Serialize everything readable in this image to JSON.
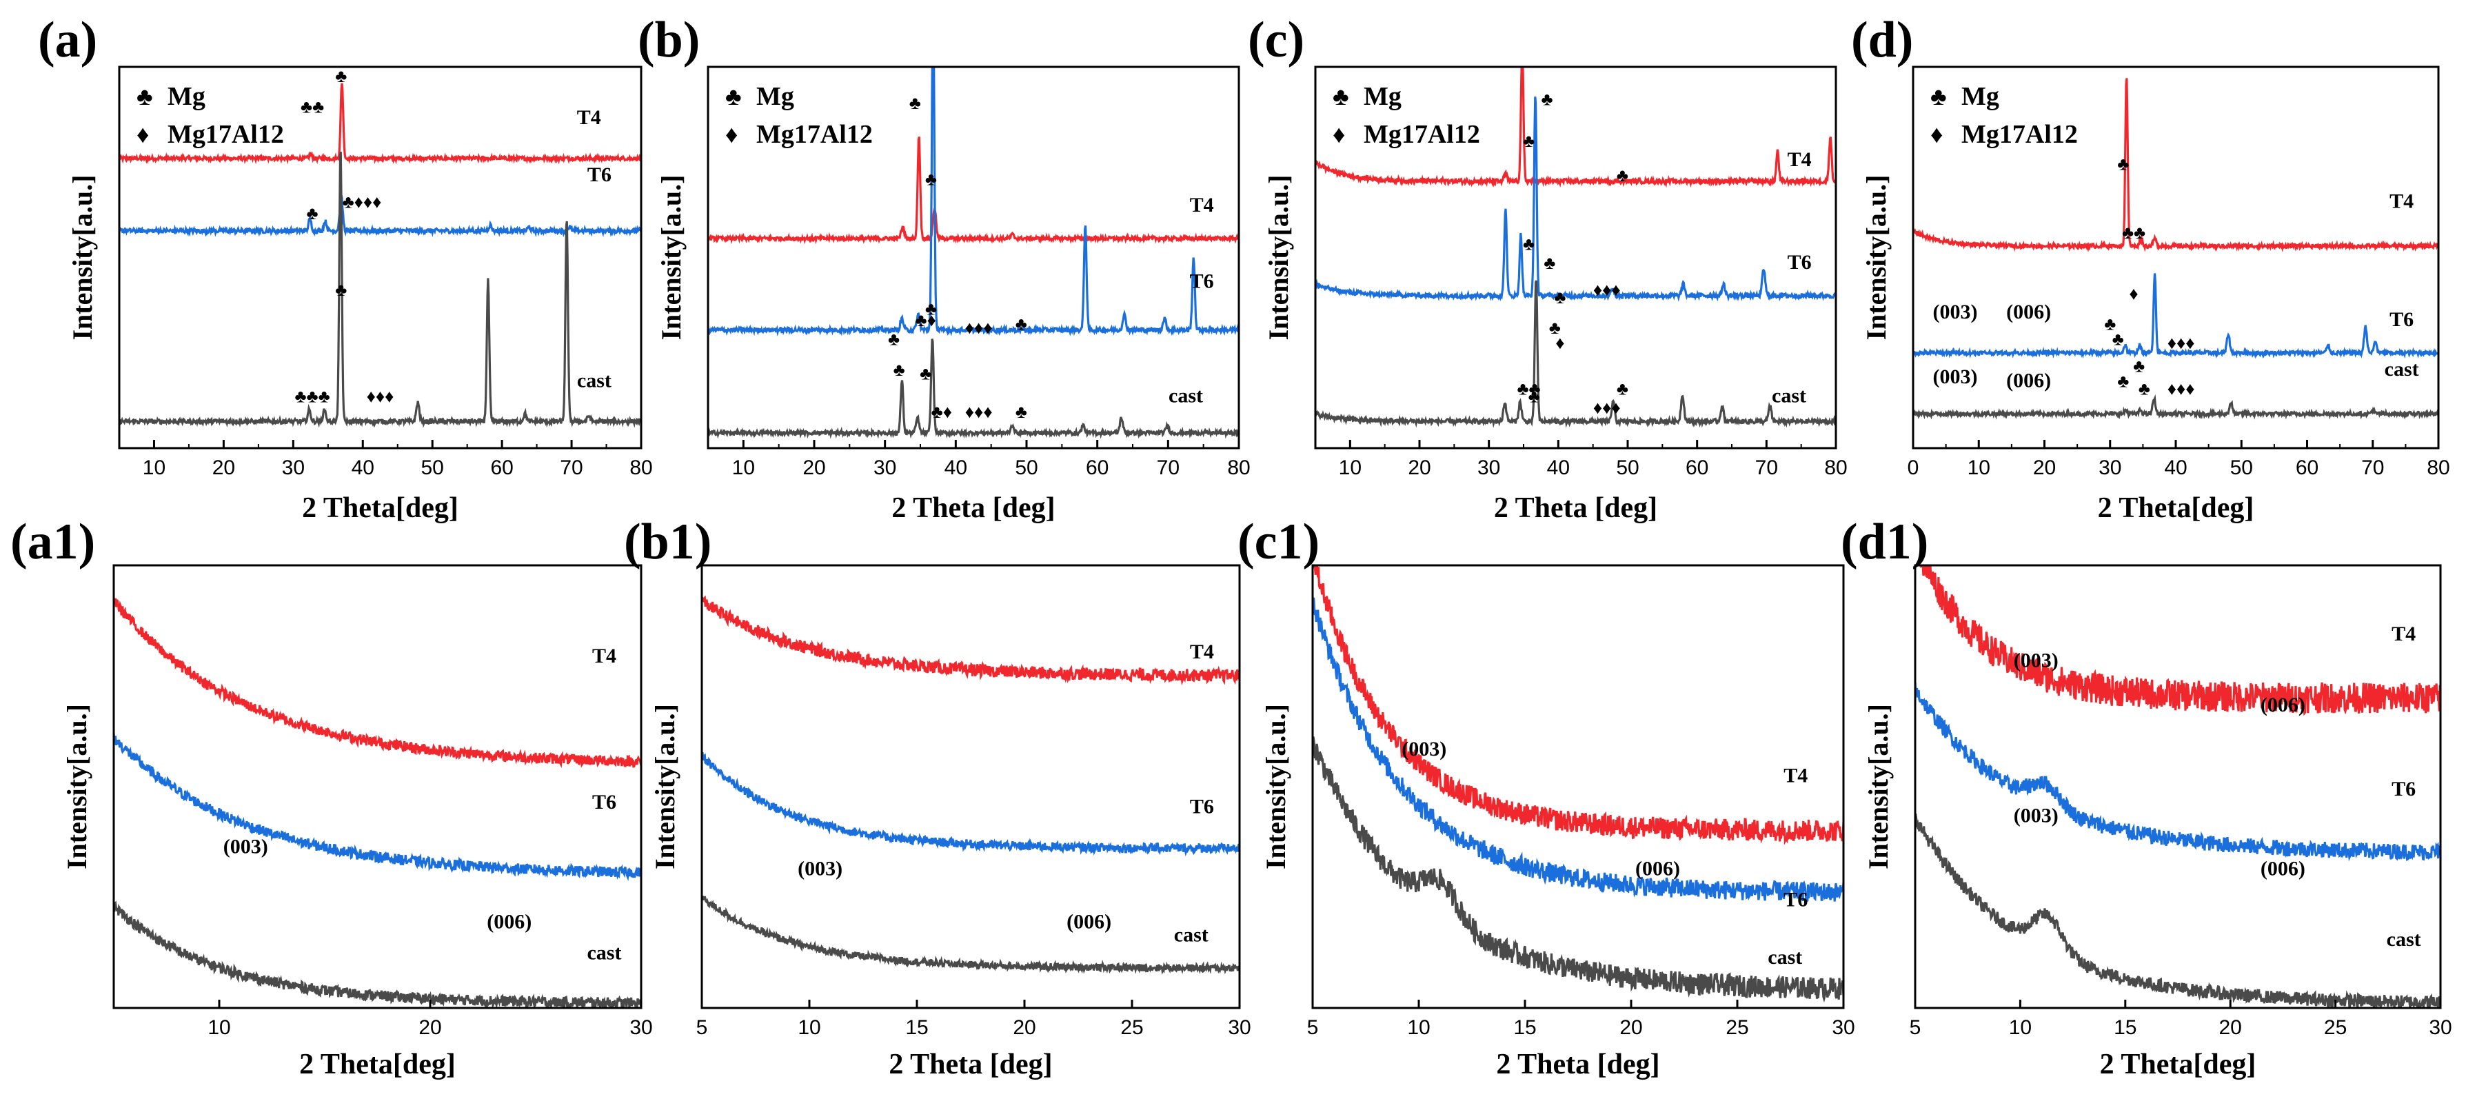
{
  "figure": {
    "description_labels": [
      "(a)",
      "(b)",
      "(c)",
      "(d)",
      "(a1)",
      "(b1)",
      "(c1)",
      "(d1)"
    ]
  },
  "legend_symbols": {
    "mg": "♣",
    "mg17al12": "♦"
  },
  "colors": {
    "T4": "#f0282d",
    "T6": "#1a6fdc",
    "cast": "#4a4a4a",
    "axis": "#000000"
  },
  "chart_data": [
    {
      "panel": "(a)",
      "type": "line",
      "xlabel": "2 Theta[deg]",
      "ylabel": "Intensity[a.u.]",
      "xlim": [
        5,
        80
      ],
      "xticks": [
        10,
        20,
        30,
        40,
        50,
        60,
        70,
        80
      ],
      "legend": [
        {
          "symbol": "♣",
          "label": "Mg"
        },
        {
          "symbol": "♦",
          "label": "Mg17Al12"
        }
      ],
      "series": [
        {
          "name": "T4",
          "color": "#f0282d",
          "baseline": 0.76,
          "noise": 0.005,
          "peaks": [
            [
              37.0,
              0.2,
              0.25
            ],
            [
              32.5,
              0.01,
              0.3
            ]
          ]
        },
        {
          "name": "T6",
          "color": "#1a6fdc",
          "baseline": 0.57,
          "noise": 0.006,
          "peaks": [
            [
              32.4,
              0.03,
              0.3
            ],
            [
              34.6,
              0.025,
              0.3
            ],
            [
              36.9,
              0.09,
              0.3
            ],
            [
              58.3,
              0.015,
              0.3
            ],
            [
              63.9,
              0.01,
              0.3
            ],
            [
              69.7,
              0.01,
              0.3
            ]
          ]
        },
        {
          "name": "cast",
          "color": "#4a4a4a",
          "baseline": 0.07,
          "noise": 0.006,
          "peaks": [
            [
              32.3,
              0.03,
              0.3
            ],
            [
              34.5,
              0.03,
              0.3
            ],
            [
              36.8,
              0.72,
              0.25
            ],
            [
              47.9,
              0.05,
              0.3
            ],
            [
              58.0,
              0.37,
              0.25
            ],
            [
              63.3,
              0.02,
              0.3
            ],
            [
              69.3,
              0.53,
              0.25
            ],
            [
              72.5,
              0.015,
              0.3
            ]
          ]
        }
      ],
      "curve_labels": [
        "T4",
        "T6",
        "cast"
      ],
      "annotations": [
        "♣♣",
        "♣",
        "♣",
        "♣♦♦♦",
        "♣",
        "♣♣♣",
        "♦♦♦"
      ]
    },
    {
      "panel": "(b)",
      "type": "line",
      "xlabel": "2 Theta [deg]",
      "ylabel": "Intensity[a.u.]",
      "xlim": [
        5,
        80
      ],
      "xticks": [
        10,
        20,
        30,
        40,
        50,
        60,
        70,
        80
      ],
      "legend": [
        {
          "symbol": "♣",
          "label": "Mg"
        },
        {
          "symbol": "♦",
          "label": "Mg17Al12"
        }
      ],
      "series": [
        {
          "name": "T4",
          "color": "#f0282d",
          "baseline": 0.55,
          "noise": 0.005,
          "peaks": [
            [
              32.5,
              0.03,
              0.3
            ],
            [
              34.8,
              0.27,
              0.25
            ],
            [
              37.0,
              0.08,
              0.3
            ],
            [
              48.0,
              0.01,
              0.3
            ]
          ]
        },
        {
          "name": "T6",
          "color": "#1a6fdc",
          "baseline": 0.31,
          "noise": 0.006,
          "peaks": [
            [
              32.4,
              0.03,
              0.3
            ],
            [
              34.7,
              0.04,
              0.3
            ],
            [
              36.8,
              0.85,
              0.25
            ],
            [
              58.3,
              0.28,
              0.25
            ],
            [
              63.8,
              0.04,
              0.3
            ],
            [
              69.5,
              0.03,
              0.3
            ],
            [
              73.6,
              0.19,
              0.25
            ]
          ]
        },
        {
          "name": "cast",
          "color": "#4a4a4a",
          "baseline": 0.04,
          "noise": 0.005,
          "peaks": [
            [
              32.4,
              0.14,
              0.25
            ],
            [
              34.6,
              0.04,
              0.3
            ],
            [
              36.7,
              0.25,
              0.25
            ],
            [
              48.0,
              0.02,
              0.3
            ],
            [
              58.0,
              0.02,
              0.3
            ],
            [
              63.4,
              0.04,
              0.3
            ],
            [
              69.9,
              0.02,
              0.3
            ]
          ]
        }
      ],
      "curve_labels": [
        "T4",
        "T6",
        "cast"
      ],
      "annotations": [
        "♣",
        "♣",
        "♣",
        "♣♦",
        "♣",
        "♦♦♦",
        "♣",
        "♣",
        "♣",
        "♣♦",
        "♦♦♦",
        "♣"
      ]
    },
    {
      "panel": "(c)",
      "type": "line",
      "xlabel": "2 Theta [deg]",
      "ylabel": "Intensity[a.u.]",
      "xlim": [
        5,
        80
      ],
      "xticks": [
        10,
        20,
        30,
        40,
        50,
        60,
        70,
        80
      ],
      "legend": [
        {
          "symbol": "♣",
          "label": "Mg"
        },
        {
          "symbol": "♦",
          "label": "Mg17Al12"
        }
      ],
      "series": [
        {
          "name": "T4",
          "color": "#f0282d",
          "baseline": 0.7,
          "noise": 0.006,
          "slope": 0.05,
          "peaks": [
            [
              32.4,
              0.02,
              0.3
            ],
            [
              34.8,
              0.34,
              0.25
            ],
            [
              71.6,
              0.08,
              0.25
            ],
            [
              79.2,
              0.12,
              0.25
            ]
          ]
        },
        {
          "name": "T6",
          "color": "#1a6fdc",
          "baseline": 0.4,
          "noise": 0.006,
          "slope": 0.03,
          "peaks": [
            [
              32.4,
              0.23,
              0.25
            ],
            [
              34.6,
              0.16,
              0.25
            ],
            [
              36.7,
              0.53,
              0.25
            ],
            [
              47.8,
              0.02,
              0.3
            ],
            [
              58.0,
              0.03,
              0.3
            ],
            [
              63.8,
              0.03,
              0.3
            ],
            [
              69.6,
              0.07,
              0.3
            ]
          ]
        },
        {
          "name": "cast",
          "color": "#4a4a4a",
          "baseline": 0.07,
          "noise": 0.006,
          "slope": 0.02,
          "peaks": [
            [
              32.3,
              0.05,
              0.3
            ],
            [
              34.5,
              0.05,
              0.3
            ],
            [
              36.8,
              0.38,
              0.25
            ],
            [
              47.9,
              0.05,
              0.3
            ],
            [
              57.9,
              0.07,
              0.3
            ],
            [
              63.6,
              0.04,
              0.3
            ],
            [
              70.5,
              0.04,
              0.3
            ]
          ]
        }
      ],
      "curve_labels": [
        "T4",
        "T6",
        "cast"
      ],
      "annotations": [
        "♣",
        "♣",
        "♣",
        "♣",
        "♣",
        "♣",
        "♦♦♦",
        "♣",
        "♣♣",
        "♣",
        "♦",
        "♣",
        "♦♦♦"
      ]
    },
    {
      "panel": "(d)",
      "type": "line",
      "xlabel": "2 Theta[deg]",
      "ylabel": "Intensity[a.u.]",
      "xlim": [
        0,
        80
      ],
      "xticks": [
        0,
        10,
        20,
        30,
        40,
        50,
        60,
        70,
        80
      ],
      "legend": [
        {
          "symbol": "♣",
          "label": "Mg"
        },
        {
          "symbol": "♦",
          "label": "Mg17Al12"
        }
      ],
      "series": [
        {
          "name": "T4",
          "color": "#f0282d",
          "baseline": 0.53,
          "noise": 0.005,
          "slope": 0.04,
          "peaks": [
            [
              32.5,
              0.45,
              0.25
            ],
            [
              34.7,
              0.02,
              0.3
            ],
            [
              36.8,
              0.02,
              0.3
            ]
          ]
        },
        {
          "name": "T6",
          "color": "#1a6fdc",
          "baseline": 0.25,
          "noise": 0.005,
          "peaks": [
            [
              32.3,
              0.02,
              0.3
            ],
            [
              34.5,
              0.02,
              0.3
            ],
            [
              36.8,
              0.21,
              0.25
            ],
            [
              48.0,
              0.05,
              0.3
            ],
            [
              63.2,
              0.02,
              0.3
            ],
            [
              68.9,
              0.07,
              0.3
            ],
            [
              70.4,
              0.03,
              0.3
            ]
          ]
        },
        {
          "name": "cast",
          "color": "#4a4a4a",
          "baseline": 0.09,
          "noise": 0.005,
          "peaks": [
            [
              32.4,
              0.01,
              0.3
            ],
            [
              34.6,
              0.01,
              0.3
            ],
            [
              36.7,
              0.04,
              0.3
            ],
            [
              48.4,
              0.03,
              0.3
            ],
            [
              70.0,
              0.01,
              0.3
            ]
          ]
        }
      ],
      "curve_labels": [
        "T4",
        "T6",
        "cast"
      ],
      "annotations": [
        "♣",
        "♣♣",
        "(003)",
        "(006)",
        "♣",
        "♣",
        "♦",
        "♦♦♦",
        "(003)",
        "(006)",
        "♣",
        "♣",
        "♣",
        "♦♦♦"
      ]
    },
    {
      "panel": "(a1)",
      "type": "line",
      "xlabel": "2 Theta[deg]",
      "ylabel": "Intensity[a.u.]",
      "xlim": [
        5,
        30
      ],
      "xticks": [
        10,
        20,
        30
      ],
      "tick_labels": [
        "10",
        "20",
        "30"
      ],
      "series": [
        {
          "name": "T4",
          "color": "#f0282d",
          "start": 0.92,
          "end": 0.55,
          "decay": 4.0,
          "noise": 0.012
        },
        {
          "name": "T6",
          "color": "#1a6fdc",
          "start": 0.61,
          "end": 0.3,
          "decay": 4.0,
          "noise": 0.012
        },
        {
          "name": "cast",
          "color": "#4a4a4a",
          "start": 0.23,
          "end": 0.01,
          "decay": 5.0,
          "noise": 0.012
        }
      ],
      "curve_labels": [
        "T4",
        "T6",
        "cast"
      ],
      "annotations": [
        "(003)",
        "(006)"
      ]
    },
    {
      "panel": "(b1)",
      "type": "line",
      "xlabel": "2 Theta [deg]",
      "ylabel": "Intensity[a.u.]",
      "xlim": [
        5,
        30
      ],
      "xticks": [
        5,
        10,
        15,
        20,
        25,
        30
      ],
      "tick_labels": [
        "5",
        "10",
        "15",
        "20",
        "25",
        "30"
      ],
      "series": [
        {
          "name": "T4",
          "color": "#f0282d",
          "start": 0.92,
          "end": 0.75,
          "decay": 5.0,
          "noise": 0.014
        },
        {
          "name": "T6",
          "color": "#1a6fdc",
          "start": 0.57,
          "end": 0.36,
          "decay": 6.0,
          "noise": 0.01
        },
        {
          "name": "cast",
          "color": "#4a4a4a",
          "start": 0.25,
          "end": 0.09,
          "decay": 6.0,
          "noise": 0.008
        }
      ],
      "curve_labels": [
        "T4",
        "T6",
        "cast"
      ],
      "annotations": [
        "(003)",
        "(006)"
      ]
    },
    {
      "panel": "(c1)",
      "type": "line",
      "xlabel": "2 Theta [deg]",
      "ylabel": "Intensity[a.u.]",
      "xlim": [
        5,
        30
      ],
      "xticks": [
        5,
        10,
        15,
        20,
        25,
        30
      ],
      "tick_labels": [
        "5",
        "10",
        "15",
        "20",
        "25",
        "30"
      ],
      "series": [
        {
          "name": "T4",
          "color": "#f0282d",
          "start": 1.02,
          "end": 0.4,
          "decay": 7.0,
          "noise": 0.025
        },
        {
          "name": "T6",
          "color": "#1a6fdc",
          "start": 0.92,
          "end": 0.26,
          "decay": 6.0,
          "noise": 0.022
        },
        {
          "name": "cast",
          "color": "#4a4a4a",
          "start": 0.6,
          "end": 0.04,
          "decay": 5.0,
          "noise": 0.025,
          "bump": [
            11.0,
            0.08,
            1.2
          ]
        }
      ],
      "curve_labels": [
        "T4",
        "T6",
        "cast"
      ],
      "annotations": [
        "(003)",
        "(006)"
      ]
    },
    {
      "panel": "(d1)",
      "type": "line",
      "xlabel": "2 Theta[deg]",
      "ylabel": "Intensity[a.u.]",
      "xlim": [
        5,
        30
      ],
      "xticks": [
        5,
        10,
        15,
        20,
        25,
        30
      ],
      "tick_labels": [
        "5",
        "10",
        "15",
        "20",
        "25",
        "30"
      ],
      "series": [
        {
          "name": "T4",
          "color": "#f0282d",
          "start": 1.05,
          "end": 0.7,
          "decay": 8.0,
          "noise": 0.035
        },
        {
          "name": "T6",
          "color": "#1a6fdc",
          "start": 0.72,
          "end": 0.35,
          "decay": 5.0,
          "noise": 0.018,
          "bump": [
            11.2,
            0.05,
            1.0
          ]
        },
        {
          "name": "cast",
          "color": "#4a4a4a",
          "start": 0.43,
          "end": 0.01,
          "decay": 5.0,
          "noise": 0.015,
          "bump": [
            11.3,
            0.08,
            1.0
          ]
        }
      ],
      "curve_labels": [
        "T4",
        "T6",
        "cast"
      ],
      "annotations": [
        "(003)",
        "(006)",
        "(003)",
        "(006)"
      ]
    }
  ]
}
